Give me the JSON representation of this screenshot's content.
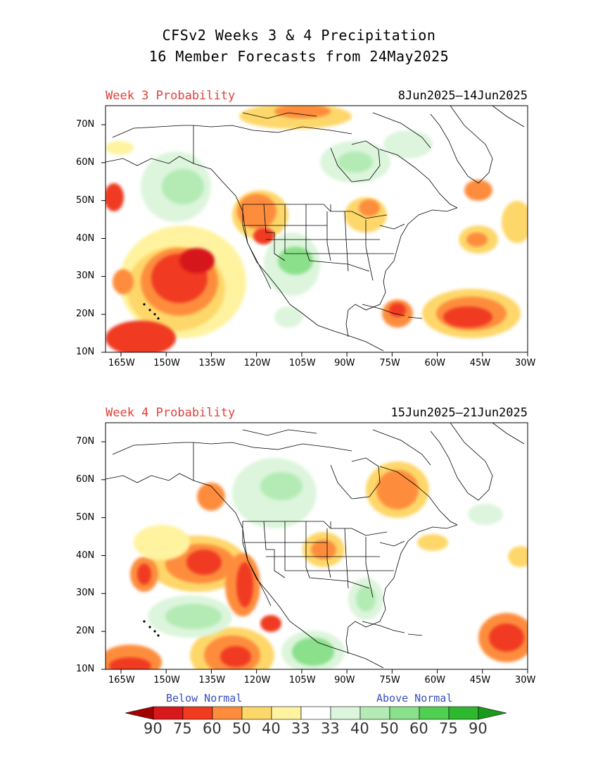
{
  "title": {
    "line1": "CFSv2 Weeks 3 & 4 Precipitation",
    "line2": "16 Member Forecasts from 24May2025"
  },
  "panels": [
    {
      "week_label": "Week 3 Probability",
      "date_range": "8Jun2025—14Jun2025",
      "lat_labels": [
        "70N",
        "60N",
        "50N",
        "40N",
        "30N",
        "20N",
        "10N"
      ],
      "lon_labels": [
        "165W",
        "150W",
        "135W",
        "120W",
        "105W",
        "90W",
        "75W",
        "60W",
        "45W",
        "30W"
      ]
    },
    {
      "week_label": "Week 4 Probability",
      "date_range": "15Jun2025—21Jun2025",
      "lat_labels": [
        "70N",
        "60N",
        "50N",
        "40N",
        "30N",
        "20N",
        "10N"
      ],
      "lon_labels": [
        "165W",
        "150W",
        "135W",
        "120W",
        "105W",
        "90W",
        "75W",
        "60W",
        "45W",
        "30W"
      ]
    }
  ],
  "legend": {
    "below_label": "Below Normal",
    "above_label": "Above Normal",
    "values": [
      "90",
      "75",
      "60",
      "50",
      "40",
      "33",
      "33",
      "40",
      "50",
      "60",
      "75",
      "90"
    ],
    "colors": [
      "#a50000",
      "#d7191c",
      "#f03b20",
      "#fd8d3c",
      "#fed76a",
      "#fff3a0",
      "#ffffff",
      "#dcf5dc",
      "#b4ebb4",
      "#8be08b",
      "#50d050",
      "#2db82d",
      "#1a9a1a"
    ]
  },
  "map_colors": {
    "below_light": "#fff3a0",
    "below_mid": "#fed76a",
    "below_orange": "#fd8d3c",
    "below_red": "#f03b20",
    "below_dark": "#d7191c",
    "above_light": "#dcf5dc",
    "above_mid": "#b4ebb4",
    "above_strong": "#8be08b"
  }
}
